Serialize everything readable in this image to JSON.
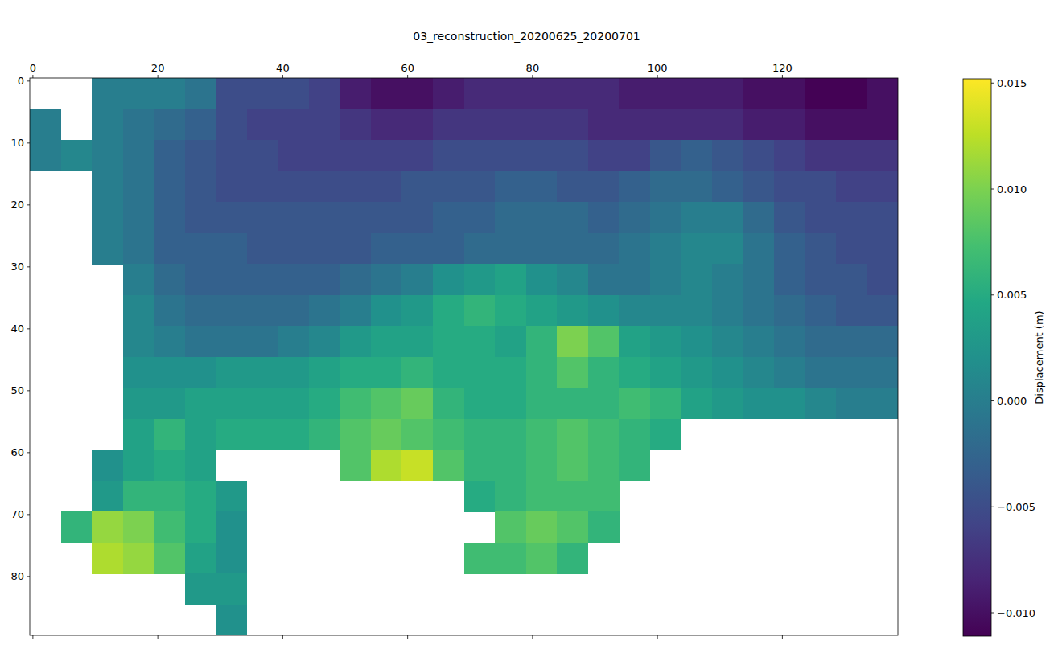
{
  "chart_data": {
    "type": "heatmap",
    "title": "03_reconstruction_20200625_20200701",
    "color": "viridis",
    "xlim": [
      -0.5,
      138.5
    ],
    "ylim": [
      89.5,
      -0.5
    ],
    "xticks": [
      0,
      20,
      40,
      60,
      80,
      100,
      120
    ],
    "yticks": [
      0,
      10,
      20,
      30,
      40,
      50,
      60,
      70,
      80
    ],
    "cells": [
      [
        null,
        null,
        0,
        0,
        0,
        -0.001,
        -0.005,
        -0.005,
        -0.005,
        -0.006,
        -0.009,
        -0.01,
        -0.01,
        -0.009,
        -0.008,
        -0.008,
        -0.008,
        -0.008,
        -0.008,
        -0.009,
        -0.009,
        -0.009,
        -0.009,
        -0.01,
        -0.01,
        -0.011,
        -0.011,
        -0.01
      ],
      [
        0,
        null,
        0,
        -0.001,
        -0.002,
        -0.003,
        -0.005,
        -0.006,
        -0.006,
        -0.006,
        -0.007,
        -0.008,
        -0.008,
        -0.007,
        -0.007,
        -0.007,
        -0.007,
        -0.007,
        -0.008,
        -0.008,
        -0.008,
        -0.008,
        -0.008,
        -0.009,
        -0.009,
        -0.01,
        -0.01,
        -0.01
      ],
      [
        0,
        0.001,
        0,
        -0.001,
        -0.003,
        -0.004,
        -0.005,
        -0.005,
        -0.006,
        -0.006,
        -0.006,
        -0.006,
        -0.006,
        -0.005,
        -0.005,
        -0.005,
        -0.005,
        -0.005,
        -0.006,
        -0.006,
        -0.004,
        -0.003,
        -0.004,
        -0.005,
        -0.006,
        -0.007,
        -0.007,
        -0.007
      ],
      [
        null,
        null,
        0,
        -0.001,
        -0.003,
        -0.004,
        -0.005,
        -0.005,
        -0.005,
        -0.005,
        -0.005,
        -0.005,
        -0.004,
        -0.004,
        -0.004,
        -0.003,
        -0.003,
        -0.004,
        -0.004,
        -0.003,
        -0.002,
        -0.002,
        -0.003,
        -0.004,
        -0.005,
        -0.005,
        -0.006,
        -0.006
      ],
      [
        null,
        null,
        0,
        -0.001,
        -0.003,
        -0.004,
        -0.004,
        -0.004,
        -0.004,
        -0.004,
        -0.004,
        -0.004,
        -0.004,
        -0.003,
        -0.003,
        -0.002,
        -0.002,
        -0.002,
        -0.003,
        -0.002,
        -0.001,
        0,
        0,
        -0.002,
        -0.004,
        -0.005,
        -0.005,
        -0.005
      ],
      [
        null,
        null,
        0,
        -0.001,
        -0.003,
        -0.003,
        -0.003,
        -0.004,
        -0.004,
        -0.004,
        -0.004,
        -0.003,
        -0.003,
        -0.003,
        -0.002,
        -0.002,
        -0.002,
        -0.002,
        -0.002,
        -0.001,
        0,
        0.001,
        0.001,
        -0.001,
        -0.003,
        -0.004,
        -0.005,
        -0.005
      ],
      [
        null,
        null,
        null,
        0,
        -0.002,
        -0.003,
        -0.003,
        -0.003,
        -0.003,
        -0.003,
        -0.002,
        -0.001,
        0,
        0.002,
        0.003,
        0.004,
        0.002,
        0.001,
        -0.001,
        -0.001,
        0,
        0.001,
        0,
        -0.001,
        -0.003,
        -0.004,
        -0.004,
        -0.005
      ],
      [
        null,
        null,
        null,
        0.001,
        -0.001,
        -0.002,
        -0.002,
        -0.002,
        -0.002,
        -0.001,
        0,
        0.002,
        0.003,
        0.005,
        0.006,
        0.005,
        0.004,
        0.003,
        0.002,
        0.001,
        0.001,
        0.001,
        0,
        -0.001,
        -0.002,
        -0.003,
        -0.004,
        -0.004
      ],
      [
        null,
        null,
        null,
        0.001,
        0,
        -0.001,
        -0.001,
        -0.001,
        0,
        0.001,
        0.003,
        0.004,
        0.004,
        0.005,
        0.005,
        0.004,
        0.006,
        0.01,
        0.008,
        0.004,
        0.003,
        0.002,
        0.001,
        0,
        -0.001,
        -0.002,
        -0.002,
        -0.002
      ],
      [
        null,
        null,
        null,
        0.002,
        0.002,
        0.002,
        0.003,
        0.003,
        0.003,
        0.004,
        0.005,
        0.005,
        0.006,
        0.005,
        0.005,
        0.005,
        0.006,
        0.008,
        0.006,
        0.005,
        0.004,
        0.003,
        0.002,
        0.001,
        0,
        -0.001,
        -0.001,
        -0.001
      ],
      [
        null,
        null,
        null,
        0.003,
        0.003,
        0.004,
        0.004,
        0.004,
        0.004,
        0.005,
        0.007,
        0.008,
        0.009,
        0.006,
        0.005,
        0.005,
        0.006,
        0.006,
        0.006,
        0.007,
        0.006,
        0.004,
        0.003,
        0.002,
        0.002,
        0.001,
        0,
        0
      ],
      [
        null,
        null,
        null,
        0.004,
        0.006,
        0.004,
        0.005,
        0.005,
        0.005,
        0.006,
        0.008,
        0.009,
        0.008,
        0.007,
        0.006,
        0.006,
        0.007,
        0.008,
        0.007,
        0.006,
        0.005,
        null,
        null,
        null,
        null,
        null,
        null,
        null
      ],
      [
        null,
        null,
        0.002,
        0.004,
        0.005,
        0.004,
        null,
        null,
        null,
        null,
        0.008,
        0.012,
        0.013,
        0.008,
        0.006,
        0.006,
        0.007,
        0.008,
        0.007,
        0.006,
        null,
        null,
        null,
        null,
        null,
        null,
        null,
        null
      ],
      [
        null,
        null,
        0.003,
        0.006,
        0.006,
        0.005,
        0.003,
        null,
        null,
        null,
        null,
        null,
        null,
        null,
        0.005,
        0.006,
        0.007,
        0.007,
        0.007,
        null,
        null,
        null,
        null,
        null,
        null,
        null,
        null,
        null
      ],
      [
        null,
        0.006,
        0.011,
        0.01,
        0.007,
        0.005,
        0.002,
        null,
        null,
        null,
        null,
        null,
        null,
        null,
        null,
        0.008,
        0.009,
        0.008,
        0.006,
        null,
        null,
        null,
        null,
        null,
        null,
        null,
        null,
        null
      ],
      [
        null,
        null,
        0.012,
        0.011,
        0.008,
        0.004,
        0.002,
        null,
        null,
        null,
        null,
        null,
        null,
        null,
        0.007,
        0.007,
        0.008,
        0.006,
        null,
        null,
        null,
        null,
        null,
        null,
        null,
        null,
        null,
        null
      ],
      [
        null,
        null,
        null,
        null,
        null,
        0.003,
        0.003,
        null,
        null,
        null,
        null,
        null,
        null,
        null,
        null,
        null,
        null,
        null,
        null,
        null,
        null,
        null,
        null,
        null,
        null,
        null,
        null,
        null
      ],
      [
        null,
        null,
        null,
        null,
        null,
        null,
        0.002,
        null,
        null,
        null,
        null,
        null,
        null,
        null,
        null,
        null,
        null,
        null,
        null,
        null,
        null,
        null,
        null,
        null,
        null,
        null,
        null,
        null
      ]
    ],
    "colorbar": {
      "label": "Displacement (m)",
      "range": [
        -0.0111,
        0.0152
      ],
      "ticks": [
        {
          "value": -0.01,
          "label": "−0.010"
        },
        {
          "value": -0.005,
          "label": "−0.005"
        },
        {
          "value": 0,
          "label": "0.000"
        },
        {
          "value": 0.005,
          "label": "0.005"
        },
        {
          "value": 0.01,
          "label": "0.010"
        },
        {
          "value": 0.015,
          "label": "0.015"
        }
      ]
    }
  }
}
